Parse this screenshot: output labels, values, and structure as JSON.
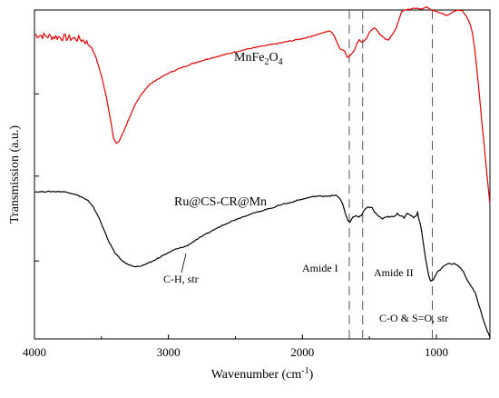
{
  "chart_data": {
    "type": "line",
    "title": "",
    "xlabel": "Wavenumber (cm",
    "xlabel_sup": "-1",
    "xlabel_tail": ")",
    "ylabel": "Transmission (a.u.)",
    "xlim": [
      4000,
      600
    ],
    "ylim": [
      0,
      1
    ],
    "x_reversed": true,
    "grid": false,
    "x_ticks": [
      4000,
      3000,
      2000,
      1000
    ],
    "x_tick_labels": [
      "4000",
      "3000",
      "2000",
      "1000"
    ],
    "x_minor_ticks": [
      3500,
      2500,
      1500
    ],
    "y_ticks": [
      0.237,
      0.495,
      0.745
    ],
    "series": [
      {
        "name": "MnFe2O4",
        "color": "#e60000",
        "points": [
          [
            4000,
            0.925
          ],
          [
            3900,
            0.92
          ],
          [
            3800,
            0.917
          ],
          [
            3750,
            0.915
          ],
          [
            3700,
            0.913
          ],
          [
            3660,
            0.912
          ],
          [
            3620,
            0.905
          ],
          [
            3580,
            0.89
          ],
          [
            3540,
            0.855
          ],
          [
            3500,
            0.8
          ],
          [
            3460,
            0.73
          ],
          [
            3430,
            0.66
          ],
          [
            3410,
            0.61
          ],
          [
            3390,
            0.595
          ],
          [
            3370,
            0.6
          ],
          [
            3340,
            0.625
          ],
          [
            3300,
            0.665
          ],
          [
            3250,
            0.71
          ],
          [
            3200,
            0.745
          ],
          [
            3150,
            0.77
          ],
          [
            3100,
            0.785
          ],
          [
            3000,
            0.808
          ],
          [
            2900,
            0.825
          ],
          [
            2800,
            0.84
          ],
          [
            2700,
            0.852
          ],
          [
            2600,
            0.862
          ],
          [
            2500,
            0.873
          ],
          [
            2400,
            0.882
          ],
          [
            2300,
            0.89
          ],
          [
            2200,
            0.897
          ],
          [
            2100,
            0.905
          ],
          [
            2000,
            0.913
          ],
          [
            1950,
            0.918
          ],
          [
            1900,
            0.924
          ],
          [
            1850,
            0.93
          ],
          [
            1810,
            0.936
          ],
          [
            1780,
            0.933
          ],
          [
            1760,
            0.92
          ],
          [
            1740,
            0.9
          ],
          [
            1720,
            0.883
          ],
          [
            1700,
            0.88
          ],
          [
            1680,
            0.872
          ],
          [
            1665,
            0.855
          ],
          [
            1650,
            0.86
          ],
          [
            1630,
            0.868
          ],
          [
            1610,
            0.88
          ],
          [
            1590,
            0.9
          ],
          [
            1575,
            0.91
          ],
          [
            1560,
            0.903
          ],
          [
            1540,
            0.905
          ],
          [
            1520,
            0.915
          ],
          [
            1500,
            0.93
          ],
          [
            1480,
            0.94
          ],
          [
            1460,
            0.945
          ],
          [
            1440,
            0.938
          ],
          [
            1420,
            0.926
          ],
          [
            1400,
            0.918
          ],
          [
            1380,
            0.912
          ],
          [
            1360,
            0.909
          ],
          [
            1340,
            0.918
          ],
          [
            1320,
            0.93
          ],
          [
            1300,
            0.945
          ],
          [
            1280,
            0.97
          ],
          [
            1260,
            0.993
          ],
          [
            1240,
            1.0
          ],
          [
            1200,
            1.003
          ],
          [
            1150,
            1.005
          ],
          [
            1100,
            1.004
          ],
          [
            1070,
            1.008
          ],
          [
            1040,
            1.0
          ],
          [
            1000,
            0.996
          ],
          [
            960,
            0.99
          ],
          [
            930,
            0.983
          ],
          [
            900,
            0.988
          ],
          [
            870,
            0.996
          ],
          [
            840,
            1.0
          ],
          [
            810,
            0.998
          ],
          [
            780,
            0.985
          ],
          [
            750,
            0.96
          ],
          [
            730,
            0.93
          ],
          [
            710,
            0.87
          ],
          [
            690,
            0.79
          ],
          [
            670,
            0.7
          ],
          [
            650,
            0.62
          ],
          [
            630,
            0.53
          ],
          [
            610,
            0.45
          ],
          [
            600,
            0.41
          ]
        ]
      },
      {
        "name": "Ru@CS-CR@Mn",
        "color": "#000000",
        "points": [
          [
            4000,
            0.447
          ],
          [
            3900,
            0.448
          ],
          [
            3800,
            0.448
          ],
          [
            3750,
            0.446
          ],
          [
            3700,
            0.44
          ],
          [
            3650,
            0.432
          ],
          [
            3600,
            0.42
          ],
          [
            3560,
            0.4
          ],
          [
            3520,
            0.37
          ],
          [
            3480,
            0.33
          ],
          [
            3440,
            0.292
          ],
          [
            3400,
            0.262
          ],
          [
            3360,
            0.243
          ],
          [
            3320,
            0.23
          ],
          [
            3280,
            0.223
          ],
          [
            3240,
            0.22
          ],
          [
            3200,
            0.222
          ],
          [
            3150,
            0.23
          ],
          [
            3100,
            0.24
          ],
          [
            3050,
            0.252
          ],
          [
            3000,
            0.262
          ],
          [
            2950,
            0.272
          ],
          [
            2900,
            0.278
          ],
          [
            2860,
            0.283
          ],
          [
            2800,
            0.3
          ],
          [
            2700,
            0.323
          ],
          [
            2600,
            0.345
          ],
          [
            2500,
            0.363
          ],
          [
            2400,
            0.378
          ],
          [
            2300,
            0.39
          ],
          [
            2200,
            0.402
          ],
          [
            2150,
            0.41
          ],
          [
            2100,
            0.413
          ],
          [
            2050,
            0.42
          ],
          [
            2000,
            0.425
          ],
          [
            1950,
            0.43
          ],
          [
            1900,
            0.434
          ],
          [
            1850,
            0.434
          ],
          [
            1800,
            0.435
          ],
          [
            1760,
            0.436
          ],
          [
            1740,
            0.435
          ],
          [
            1720,
            0.426
          ],
          [
            1700,
            0.41
          ],
          [
            1680,
            0.383
          ],
          [
            1660,
            0.36
          ],
          [
            1645,
            0.355
          ],
          [
            1625,
            0.37
          ],
          [
            1600,
            0.375
          ],
          [
            1580,
            0.37
          ],
          [
            1560,
            0.375
          ],
          [
            1540,
            0.39
          ],
          [
            1510,
            0.402
          ],
          [
            1480,
            0.398
          ],
          [
            1450,
            0.38
          ],
          [
            1420,
            0.37
          ],
          [
            1400,
            0.365
          ],
          [
            1380,
            0.368
          ],
          [
            1350,
            0.372
          ],
          [
            1320,
            0.37
          ],
          [
            1290,
            0.38
          ],
          [
            1260,
            0.375
          ],
          [
            1240,
            0.37
          ],
          [
            1220,
            0.383
          ],
          [
            1200,
            0.375
          ],
          [
            1170,
            0.37
          ],
          [
            1150,
            0.375
          ],
          [
            1140,
            0.385
          ],
          [
            1130,
            0.365
          ],
          [
            1110,
            0.33
          ],
          [
            1090,
            0.27
          ],
          [
            1070,
            0.22
          ],
          [
            1055,
            0.19
          ],
          [
            1040,
            0.175
          ],
          [
            1025,
            0.18
          ],
          [
            1010,
            0.19
          ],
          [
            990,
            0.205
          ],
          [
            970,
            0.21
          ],
          [
            950,
            0.22
          ],
          [
            930,
            0.225
          ],
          [
            910,
            0.23
          ],
          [
            890,
            0.228
          ],
          [
            860,
            0.229
          ],
          [
            830,
            0.22
          ],
          [
            800,
            0.205
          ],
          [
            770,
            0.18
          ],
          [
            740,
            0.16
          ],
          [
            710,
            0.14
          ],
          [
            680,
            0.1
          ],
          [
            650,
            0.06
          ],
          [
            620,
            0.025
          ],
          [
            600,
            0.005
          ]
        ]
      }
    ],
    "reference_lines": [
      1650,
      1550,
      1030
    ],
    "annotations": [
      {
        "text": "C-H, str",
        "x": 2900,
        "y": 0.28
      },
      {
        "text": "Amide I",
        "x": 1650,
        "y": 0.365
      },
      {
        "text": "Amide II",
        "x": 1550,
        "y": 0.39
      },
      {
        "text": "C-O & S=O, str",
        "x": 1030,
        "y": 0.18
      }
    ],
    "series_labels": {
      "mnfe": {
        "prefix": "MnFe",
        "sub1": "2",
        "mid": "O",
        "sub2": "4"
      },
      "ru": "Ru@CS-CR@Mn"
    }
  }
}
